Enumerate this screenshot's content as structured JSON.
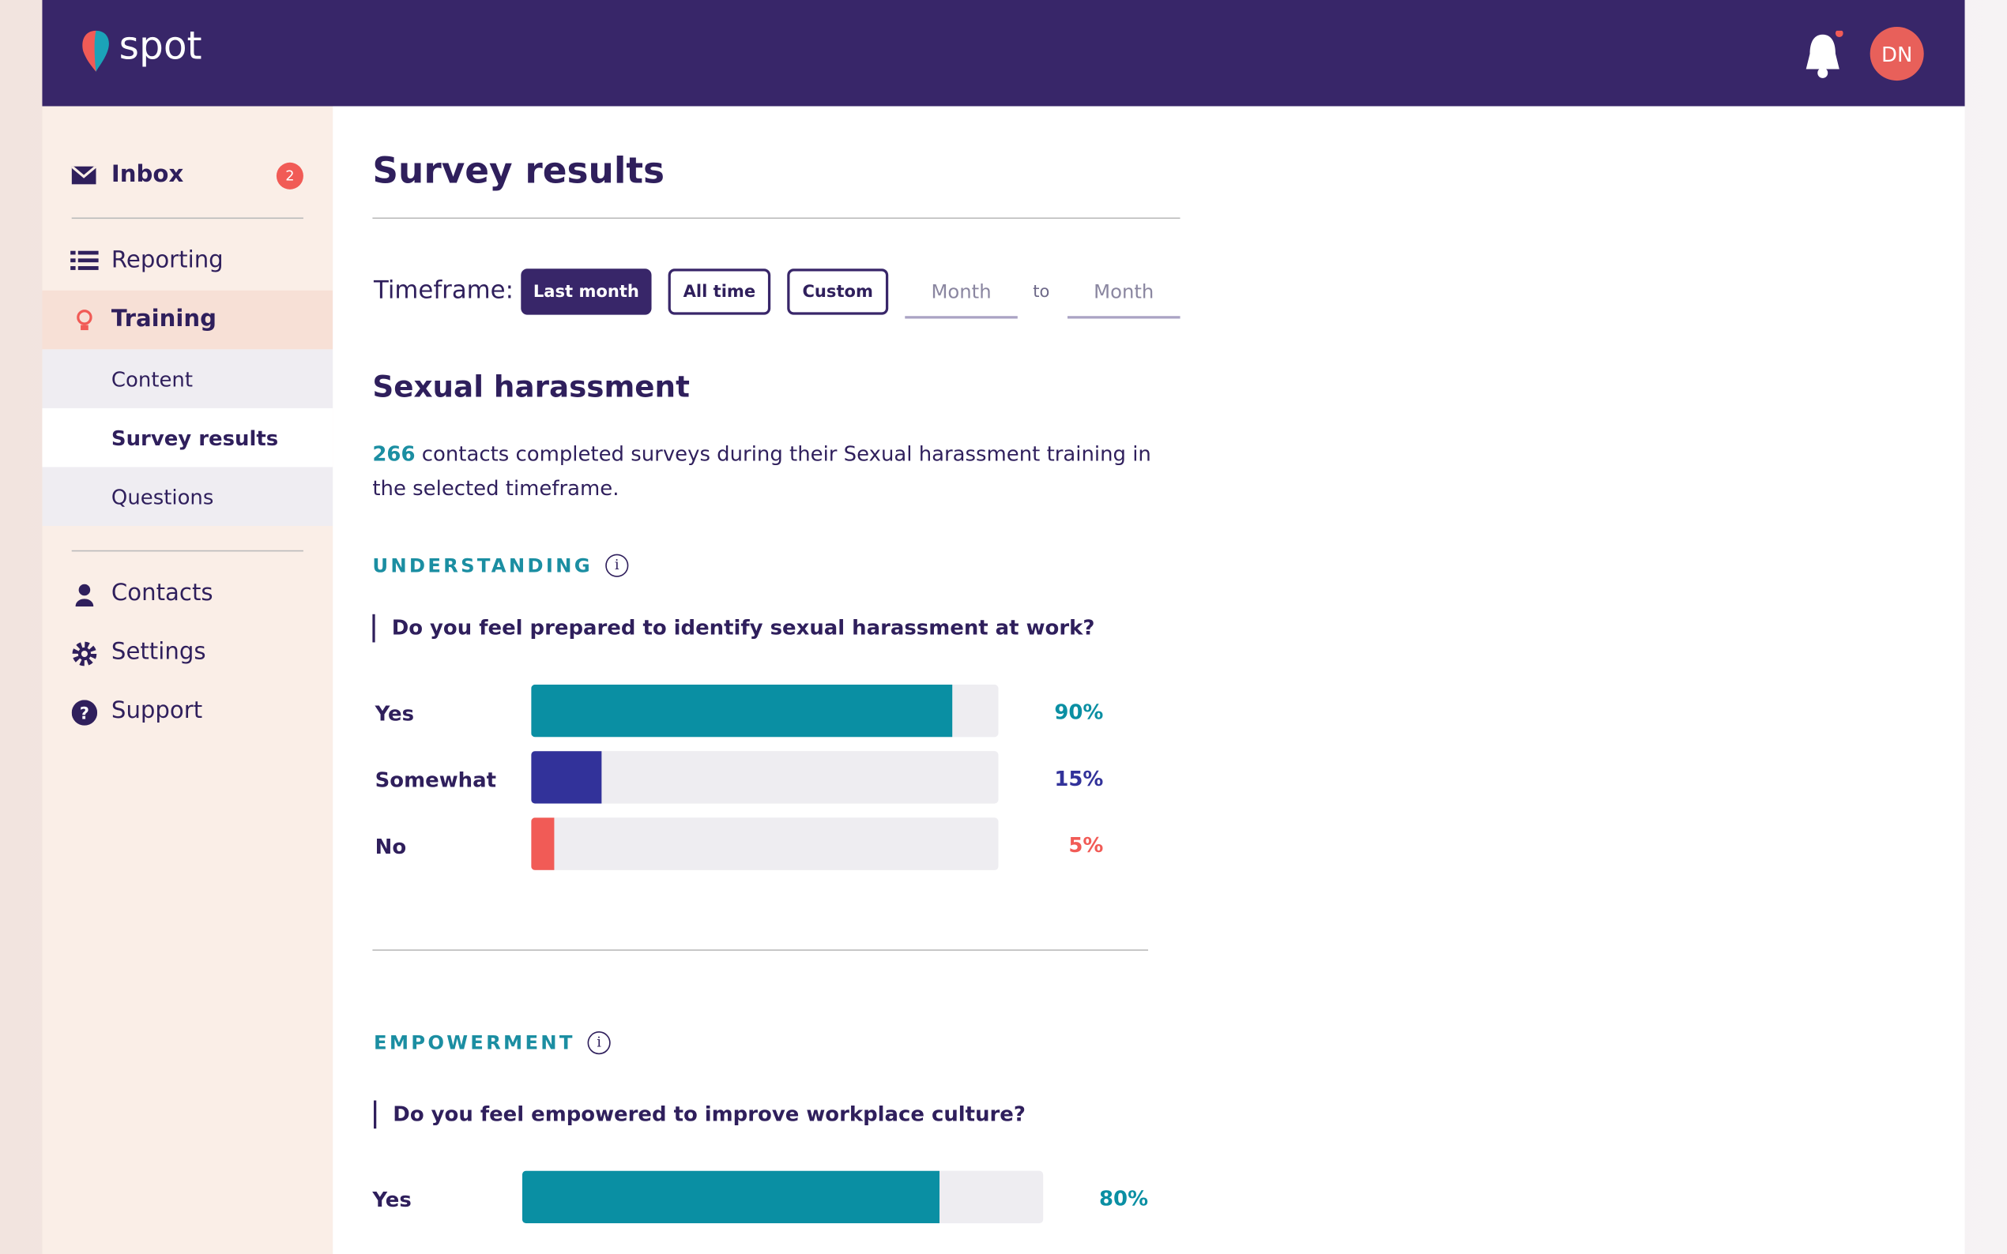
{
  "header": {
    "logo": "spot",
    "avatar": "DN"
  },
  "sidebar": {
    "inbox": {
      "label": "Inbox",
      "badge": 2
    },
    "items": [
      "Reporting",
      "Training"
    ],
    "subitems": [
      "Content",
      "Survey results",
      "Questions"
    ],
    "bottom": [
      "Contacts",
      "Settings",
      "Support"
    ]
  },
  "content": {
    "title": "Survey results",
    "timeframe_label": "Timeframe:",
    "buttons": [
      "Last month",
      "All time",
      "Custom"
    ],
    "range": [
      "Month",
      "to",
      "Month"
    ],
    "section": "Sexual harassment",
    "count": 266,
    "summary": " contacts completed surveys during their Sexual harassment training in the selected timeframe.",
    "questions": [
      {
        "category": "UNDERSTANDING",
        "question": "Do you feel prepared to identify sexual harassment at work?",
        "answers": [
          {
            "label": "Yes",
            "value": 90,
            "value_label": "90%",
            "color": "#0a8fa3"
          },
          {
            "label": "Somewhat",
            "value": 15,
            "value_label": "15%",
            "color": "#32329a"
          },
          {
            "label": "No",
            "value": 5,
            "value_label": "5%",
            "color": "#f15b56"
          }
        ]
      },
      {
        "category": "EMPOWERMENT",
        "question": "Do you feel empowered to improve workplace culture?",
        "answers": [
          {
            "label": "Yes",
            "value": 80,
            "value_label": "80%",
            "color": "#0a8fa3"
          }
        ]
      }
    ]
  }
}
